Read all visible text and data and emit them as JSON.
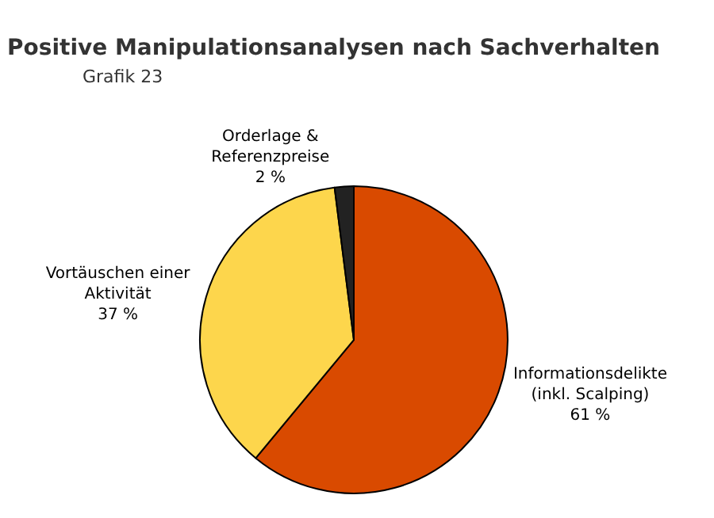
{
  "chart_data": {
    "type": "pie",
    "title": "Positive Manipulationsanalysen nach Sachverhalten",
    "annotations": [
      "Grafik 23"
    ],
    "categories": [
      "Informationsdelikte\n(inkl. Scalping)",
      "Vortäuschen einer\nAktivität",
      "Orderlage &\nReferenzpreise"
    ],
    "values": [
      61,
      37,
      2
    ],
    "value_labels": [
      "61 %",
      "37 %",
      "2 %"
    ],
    "colors": [
      "#d94a00",
      "#fdd64c",
      "#222222"
    ],
    "legend": false
  }
}
